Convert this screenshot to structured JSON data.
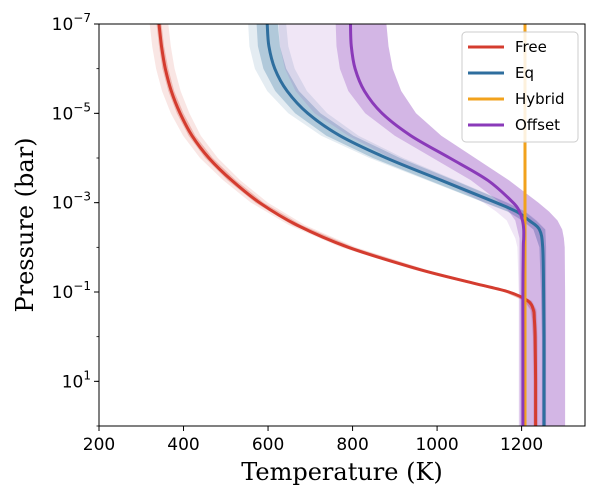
{
  "chart_data": {
    "type": "line",
    "title": "",
    "xlabel": "Temperature (K)",
    "ylabel": "Pressure (bar)",
    "xlim": [
      200,
      1350
    ],
    "ylim_log10": [
      -7,
      2
    ],
    "y_inverted": true,
    "x_ticks": [
      200,
      400,
      600,
      800,
      1000,
      1200
    ],
    "y_ticks": [
      {
        "exp": -7,
        "base": "10",
        "sup": "−7"
      },
      {
        "exp": -5,
        "base": "10",
        "sup": "−5"
      },
      {
        "exp": -3,
        "base": "10",
        "sup": "−3"
      },
      {
        "exp": -1,
        "base": "10",
        "sup": "−1"
      },
      {
        "exp": 1,
        "base": "10",
        "sup": "1"
      }
    ],
    "legend_position": "top-right",
    "series": [
      {
        "name": "Free",
        "color": "#d43c2f",
        "log_p": [
          -7,
          -6.5,
          -6,
          -5.5,
          -5,
          -4.5,
          -4,
          -3.5,
          -3,
          -2.5,
          -2,
          -1.5,
          -1.2,
          -1,
          -0.8,
          -0.6,
          -0.4,
          0,
          1,
          2
        ],
        "temp": [
          342,
          348,
          357,
          371,
          392,
          420,
          460,
          514,
          580,
          668,
          790,
          960,
          1085,
          1170,
          1215,
          1228,
          1230,
          1232,
          1233,
          1233
        ],
        "band_inner_width": [
          6,
          6,
          7,
          7,
          8,
          8,
          9,
          10,
          10,
          11,
          12,
          12,
          12,
          10,
          8,
          6,
          5,
          5,
          4,
          4
        ],
        "band_outer_width": [
          22,
          22,
          22,
          22,
          22,
          21,
          21,
          20,
          20,
          19,
          18,
          16,
          14,
          12,
          10,
          8,
          7,
          6,
          6,
          6
        ]
      },
      {
        "name": "Eq",
        "color": "#2e6e9e",
        "log_p": [
          -7,
          -6.5,
          -6,
          -5.5,
          -5,
          -4.5,
          -4,
          -3.5,
          -3,
          -2.8,
          -2.6,
          -2.4,
          -2,
          -1,
          0,
          1,
          2
        ],
        "temp": [
          598,
          602,
          616,
          645,
          694,
          770,
          880,
          1010,
          1140,
          1188,
          1218,
          1242,
          1250,
          1252,
          1253,
          1253,
          1253
        ],
        "band_inner_width": [
          25,
          26,
          27,
          28,
          30,
          32,
          32,
          30,
          26,
          20,
          16,
          14,
          8,
          6,
          5,
          5,
          5
        ],
        "band_outer_width": [
          45,
          46,
          47,
          47,
          46,
          44,
          40,
          34,
          28,
          22,
          18,
          14,
          8,
          6,
          5,
          5,
          5
        ]
      },
      {
        "name": "Hybrid",
        "color": "#f2a21c",
        "log_p": [
          -7,
          -6,
          -5,
          -4,
          -3,
          -2.5,
          -2,
          -1,
          0,
          1,
          2
        ],
        "temp": [
          1208,
          1208,
          1208,
          1208,
          1208,
          1208,
          1208,
          1208,
          1208,
          1208,
          1208
        ],
        "band_inner_width": [
          0,
          0,
          0,
          0,
          0,
          0,
          0,
          0,
          0,
          0,
          0
        ],
        "band_outer_width": [
          0,
          0,
          0,
          0,
          0,
          0,
          0,
          0,
          0,
          0,
          0
        ]
      },
      {
        "name": "Offset",
        "color": "#8a3ab9",
        "log_p": [
          -7,
          -6.5,
          -6,
          -5.5,
          -5,
          -4.5,
          -4,
          -3.5,
          -3,
          -2.8,
          -2.6,
          -2.4,
          -2.2,
          -2,
          -1,
          0,
          1,
          2
        ],
        "temp": [
          795,
          797,
          806,
          828,
          870,
          938,
          1030,
          1120,
          1180,
          1195,
          1202,
          1205,
          1205,
          1204,
          1203,
          1203,
          1203,
          1203
        ],
        "band_lo": [
          760,
          762,
          770,
          790,
          830,
          900,
          990,
          1080,
          1150,
          1170,
          1185,
          1190,
          1195,
          1195,
          1195,
          1195,
          1195,
          1195
        ],
        "band_hi": [
          880,
          885,
          895,
          915,
          950,
          1010,
          1090,
          1170,
          1240,
          1265,
          1285,
          1296,
          1300,
          1302,
          1303,
          1303,
          1303,
          1303
        ],
        "band_outer_lo": [
          625,
          628,
          640,
          665,
          710,
          790,
          890,
          1010,
          1110,
          1140,
          1165,
          1175,
          1185,
          1190,
          1193,
          1193,
          1193,
          1193
        ],
        "band_outer_hi": [
          880,
          885,
          895,
          915,
          950,
          1010,
          1090,
          1170,
          1240,
          1265,
          1285,
          1296,
          1300,
          1302,
          1303,
          1303,
          1303,
          1303
        ]
      }
    ]
  }
}
